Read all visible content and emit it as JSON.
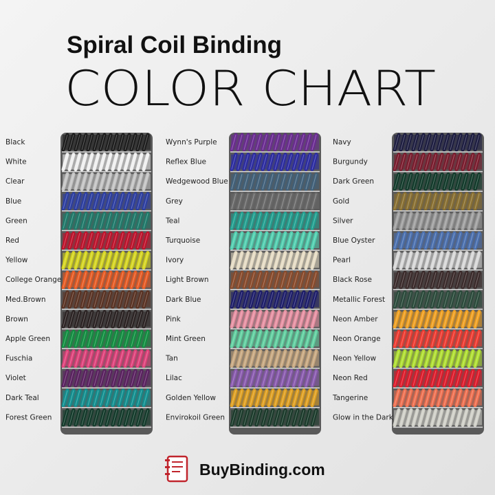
{
  "header": {
    "title": "Spiral Coil Binding",
    "subtitle": "COLOR CHART"
  },
  "columns": [
    {
      "items": [
        {
          "label": "Black",
          "color": "#1c1c1c"
        },
        {
          "label": "White",
          "color": "#f0f0f0"
        },
        {
          "label": "Clear",
          "color": "#c4c4c4"
        },
        {
          "label": "Blue",
          "color": "#2b3da2"
        },
        {
          "label": "Green",
          "color": "#1e7a6a"
        },
        {
          "label": "Red",
          "color": "#c0102a"
        },
        {
          "label": "Yellow",
          "color": "#d6d61e"
        },
        {
          "label": "College Orange",
          "color": "#e85a22"
        },
        {
          "label": "Med.Brown",
          "color": "#5a3222"
        },
        {
          "label": "Brown",
          "color": "#2a2222"
        },
        {
          "label": "Apple Green",
          "color": "#109040"
        },
        {
          "label": "Fuschia",
          "color": "#e0407a"
        },
        {
          "label": "Violet",
          "color": "#5a2060"
        },
        {
          "label": "Dark Teal",
          "color": "#109090"
        },
        {
          "label": "Forest Green",
          "color": "#123a2a"
        }
      ]
    },
    {
      "items": [
        {
          "label": "Wynn's Purple",
          "color": "#6a2a92"
        },
        {
          "label": "Reflex Blue",
          "color": "#2a2aa2"
        },
        {
          "label": "Wedgewood Blue",
          "color": "#40607a"
        },
        {
          "label": "Grey",
          "color": "#6a6a6a"
        },
        {
          "label": "Teal",
          "color": "#20a090"
        },
        {
          "label": "Turquoise",
          "color": "#50d0b0"
        },
        {
          "label": "Ivory",
          "color": "#e6dcc4"
        },
        {
          "label": "Light Brown",
          "color": "#8a4a2a"
        },
        {
          "label": "Dark Blue",
          "color": "#1c1c6a"
        },
        {
          "label": "Pink",
          "color": "#e890a2"
        },
        {
          "label": "Mint Green",
          "color": "#60d0a0"
        },
        {
          "label": "Tan",
          "color": "#c8a880"
        },
        {
          "label": "Lilac",
          "color": "#8a5ab0"
        },
        {
          "label": "Golden Yellow",
          "color": "#e0a020"
        },
        {
          "label": "Envirokoil Green",
          "color": "#1a3a2a"
        }
      ]
    },
    {
      "items": [
        {
          "label": "Navy",
          "color": "#1c1c40"
        },
        {
          "label": "Burgundy",
          "color": "#7a1a2c"
        },
        {
          "label": "Dark Green",
          "color": "#113a2a"
        },
        {
          "label": "Gold",
          "color": "#8a7030"
        },
        {
          "label": "Silver",
          "color": "#a0a0a0"
        },
        {
          "label": "Blue Oyster",
          "color": "#4a70b0"
        },
        {
          "label": "Pearl",
          "color": "#d8d8d8"
        },
        {
          "label": "Black Rose",
          "color": "#3a2a2a"
        },
        {
          "label": "Metallic Forest",
          "color": "#2a4a3a"
        },
        {
          "label": "Neon Amber",
          "color": "#f0a020"
        },
        {
          "label": "Neon Orange",
          "color": "#f03a30"
        },
        {
          "label": "Neon Yellow",
          "color": "#b0e030"
        },
        {
          "label": "Neon Red",
          "color": "#e01a2a"
        },
        {
          "label": "Tangerine",
          "color": "#f07050"
        },
        {
          "label": "Glow in the Dark",
          "color": "#d0d0c8"
        }
      ]
    }
  ],
  "footer": {
    "brand": "BuyBinding.com"
  }
}
